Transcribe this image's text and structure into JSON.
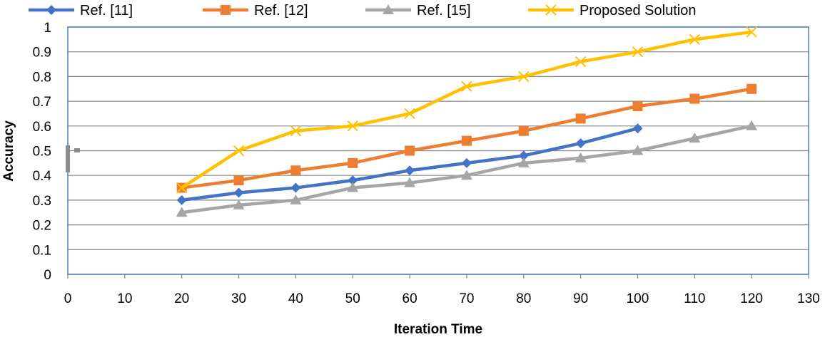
{
  "chart_data": {
    "type": "line",
    "title": "",
    "xlabel": "Iteration Time",
    "ylabel": "Accuracy",
    "xlim": [
      0,
      130
    ],
    "ylim": [
      0,
      1
    ],
    "x_ticks": [
      0,
      10,
      20,
      30,
      40,
      50,
      60,
      70,
      80,
      90,
      100,
      110,
      120,
      130
    ],
    "y_ticks": [
      0,
      0.1,
      0.2,
      0.3,
      0.4,
      0.5,
      0.6,
      0.7,
      0.8,
      0.9,
      1
    ],
    "grid": "horizontal",
    "legend_position": "top",
    "series": [
      {
        "name": "Ref. [11]",
        "color": "#4472C4",
        "marker": "diamond",
        "x": [
          20,
          30,
          40,
          50,
          60,
          70,
          80,
          90,
          100
        ],
        "y": [
          0.3,
          0.33,
          0.35,
          0.38,
          0.42,
          0.45,
          0.48,
          0.53,
          0.59
        ]
      },
      {
        "name": "Ref. [12]",
        "color": "#ED7D31",
        "marker": "square",
        "x": [
          20,
          30,
          40,
          50,
          60,
          70,
          80,
          90,
          100,
          110,
          120
        ],
        "y": [
          0.35,
          0.38,
          0.42,
          0.45,
          0.5,
          0.54,
          0.58,
          0.63,
          0.68,
          0.71,
          0.75
        ]
      },
      {
        "name": "Ref. [15]",
        "color": "#A5A5A5",
        "marker": "triangle",
        "x": [
          20,
          30,
          40,
          50,
          60,
          70,
          80,
          90,
          100,
          110,
          120
        ],
        "y": [
          0.25,
          0.28,
          0.3,
          0.35,
          0.37,
          0.4,
          0.45,
          0.47,
          0.5,
          0.55,
          0.6
        ]
      },
      {
        "name": "Proposed Solution",
        "color": "#FFC000",
        "marker": "x",
        "x": [
          20,
          30,
          40,
          50,
          60,
          70,
          80,
          90,
          100,
          110,
          120
        ],
        "y": [
          0.35,
          0.5,
          0.58,
          0.6,
          0.65,
          0.76,
          0.8,
          0.86,
          0.9,
          0.95,
          0.98
        ]
      }
    ]
  }
}
